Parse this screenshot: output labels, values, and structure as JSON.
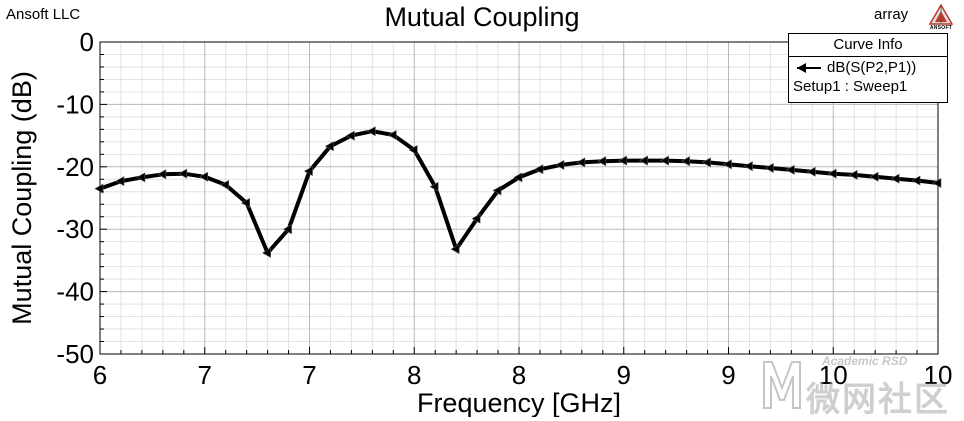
{
  "header": {
    "company": "Ansoft LLC",
    "project": "array",
    "logo_text": "ANSOFT"
  },
  "legend": {
    "title": "Curve Info",
    "series_label": "dB(S(P2,P1))",
    "setup_label": "Setup1 : Sweep1"
  },
  "watermark": {
    "english": "Academic RSD",
    "chinese": "微网社区"
  },
  "chart_data": {
    "type": "line",
    "title": "Mutual Coupling",
    "xlabel": "Frequency [GHz]",
    "ylabel": "Mutual Coupling (dB)",
    "xlim": [
      6,
      10
    ],
    "ylim": [
      -50,
      0
    ],
    "x_tick_labels": [
      "6",
      "7",
      "7",
      "8",
      "8",
      "9",
      "9",
      "10",
      "10"
    ],
    "y_tick_labels": [
      "0",
      "-10",
      "-20",
      "-30",
      "-40",
      "-50"
    ],
    "grid": true,
    "legend_position": "top-right",
    "line_color": "#000000",
    "series": [
      {
        "name": "dB(S(P2,P1))",
        "x": [
          6.0,
          6.1,
          6.2,
          6.3,
          6.4,
          6.5,
          6.6,
          6.7,
          6.8,
          6.9,
          7.0,
          7.1,
          7.2,
          7.3,
          7.4,
          7.5,
          7.6,
          7.7,
          7.8,
          7.9,
          8.0,
          8.1,
          8.2,
          8.3,
          8.4,
          8.5,
          8.6,
          8.7,
          8.8,
          8.9,
          9.0,
          9.1,
          9.2,
          9.3,
          9.4,
          9.5,
          9.6,
          9.7,
          9.8,
          9.9,
          10.0
        ],
        "y": [
          -23.5,
          -22.3,
          -21.7,
          -21.2,
          -21.1,
          -21.6,
          -22.9,
          -25.8,
          -33.8,
          -30.0,
          -20.7,
          -16.7,
          -15.0,
          -14.3,
          -14.9,
          -17.3,
          -23.2,
          -33.2,
          -28.3,
          -23.8,
          -21.7,
          -20.4,
          -19.7,
          -19.3,
          -19.1,
          -19.0,
          -19.0,
          -19.0,
          -19.1,
          -19.3,
          -19.6,
          -19.9,
          -20.2,
          -20.5,
          -20.8,
          -21.1,
          -21.3,
          -21.6,
          -21.9,
          -22.2,
          -22.6
        ]
      }
    ]
  }
}
